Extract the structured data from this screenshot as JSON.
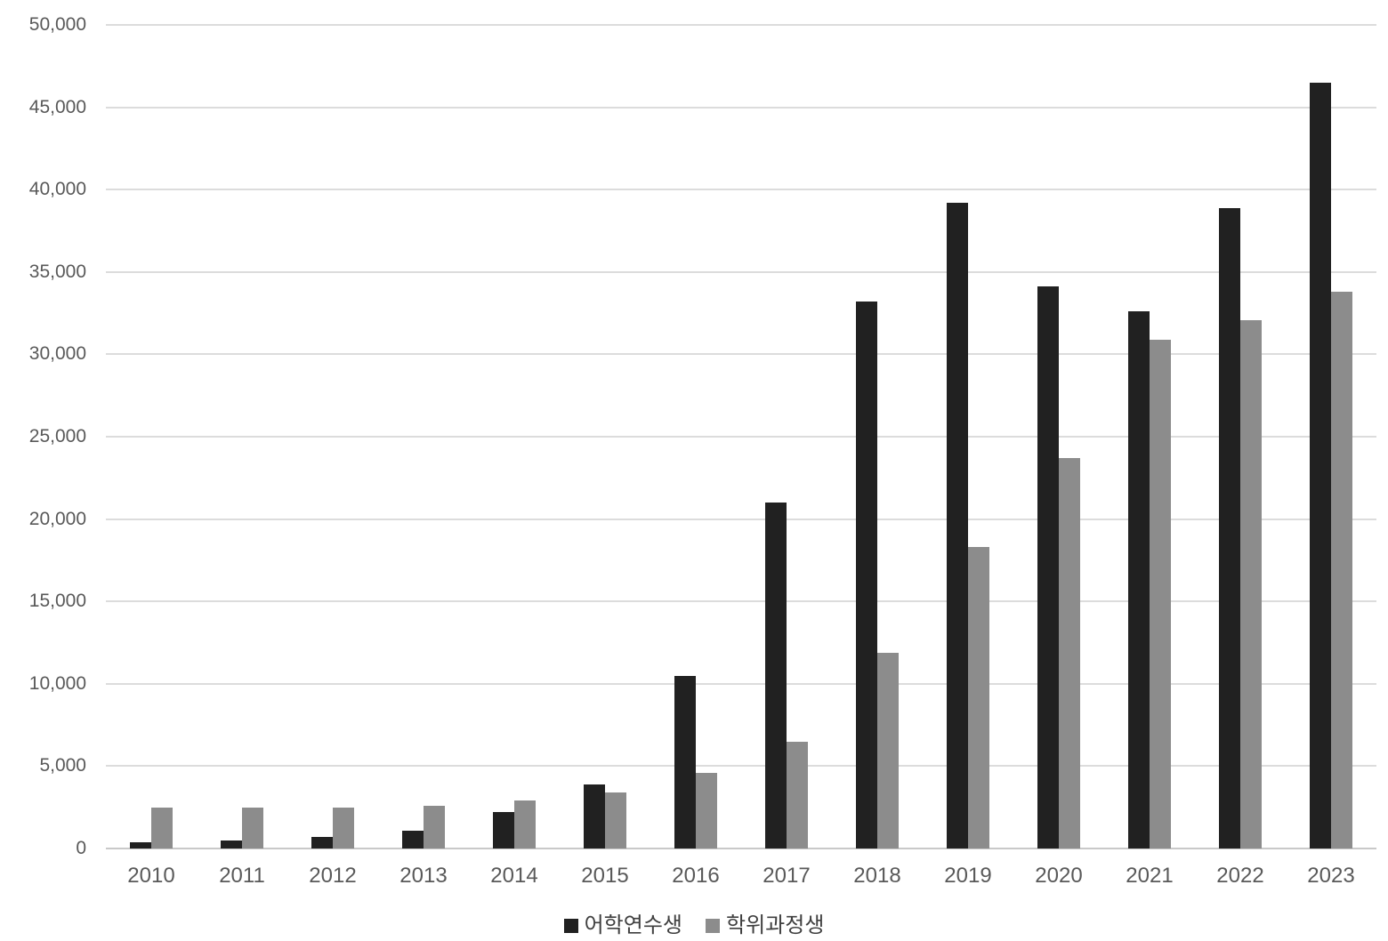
{
  "chart_data": {
    "type": "bar",
    "title": "",
    "xlabel": "",
    "ylabel": "",
    "categories": [
      "2010",
      "2011",
      "2012",
      "2013",
      "2014",
      "2015",
      "2016",
      "2017",
      "2018",
      "2019",
      "2020",
      "2021",
      "2022",
      "2023"
    ],
    "series": [
      {
        "name": "어학연수생",
        "color": "#212121",
        "values": [
          400,
          500,
          700,
          1100,
          2200,
          3900,
          10500,
          21000,
          33200,
          39200,
          34100,
          32600,
          38900,
          46500
        ]
      },
      {
        "name": "학위과정생",
        "color": "#8c8c8c",
        "values": [
          2500,
          2500,
          2500,
          2600,
          2900,
          3400,
          4600,
          6500,
          11900,
          18300,
          23700,
          30900,
          32100,
          33800
        ]
      }
    ],
    "ylim": [
      0,
      50000
    ],
    "ytick_step": 5000,
    "ytick_labels": [
      "0",
      "5,000",
      "10,000",
      "15,000",
      "20,000",
      "25,000",
      "30,000",
      "35,000",
      "40,000",
      "45,000",
      "50,000"
    ],
    "grid": true,
    "legend_position": "bottom",
    "background_color": "#ffffff",
    "gridline_color": "#dcdcdc",
    "axis_label_color": "#595959",
    "legend_text_color": "#3f3f3f"
  }
}
